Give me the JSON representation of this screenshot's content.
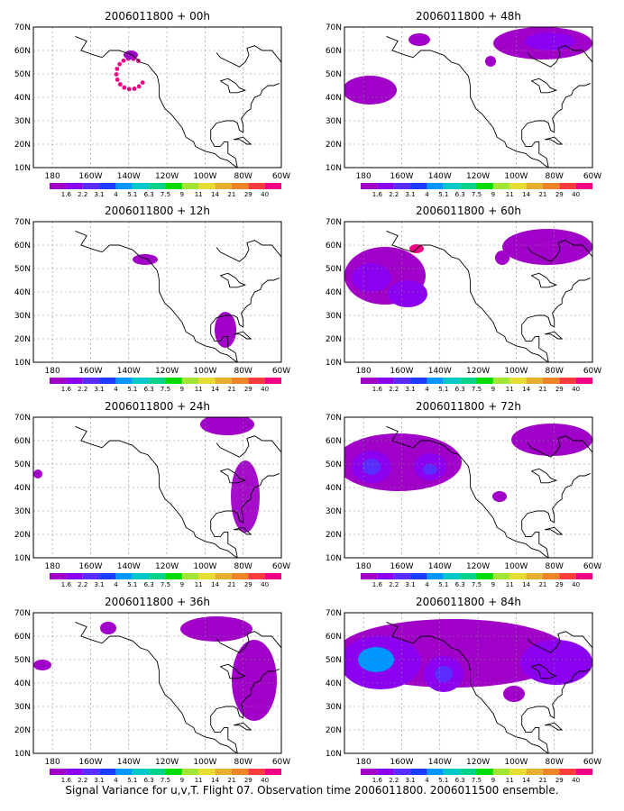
{
  "caption": "Signal Variance for u,v,T. Flight 07. Observation time 2006011800. 2006011500 ensemble.",
  "lat_labels": [
    "10N",
    "20N",
    "30N",
    "40N",
    "50N",
    "60N",
    "70N"
  ],
  "lon_labels": [
    "180",
    "160W",
    "140W",
    "120W",
    "100W",
    "80W",
    "60W"
  ],
  "colorbar": {
    "labels": [
      "1.6",
      "2.2",
      "3.1",
      "4",
      "5.1",
      "6.3",
      "7.5",
      "9",
      "11",
      "14",
      "21",
      "29",
      "40"
    ],
    "colors": [
      "#a000c8",
      "#8c00f0",
      "#5a2cff",
      "#1e3cff",
      "#0096ff",
      "#00c8c8",
      "#00d28c",
      "#00dc00",
      "#a0e632",
      "#e6dc32",
      "#e6af2d",
      "#f08228",
      "#fa3c3c",
      "#f00082"
    ]
  },
  "panels": [
    {
      "title": "2006011800 + 00h"
    },
    {
      "title": "2006011800 + 48h"
    },
    {
      "title": "2006011800 + 12h"
    },
    {
      "title": "2006011800 + 60h"
    },
    {
      "title": "2006011800 + 24h"
    },
    {
      "title": "2006011800 + 72h"
    },
    {
      "title": "2006011800 + 36h"
    },
    {
      "title": "2006011800 + 84h"
    }
  ]
}
